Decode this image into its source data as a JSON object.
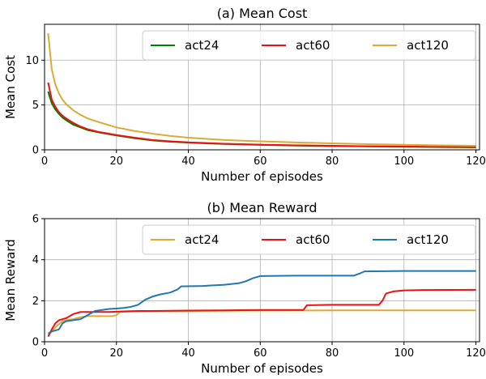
{
  "chart_data": [
    {
      "type": "line",
      "title": "(a) Mean Cost",
      "xlabel": "Number of episodes",
      "ylabel": "Mean Cost",
      "xlim": [
        0,
        121
      ],
      "ylim": [
        0,
        14
      ],
      "xticks": [
        0,
        20,
        40,
        60,
        80,
        100,
        120
      ],
      "yticks": [
        0,
        5,
        10
      ],
      "grid": true,
      "legend": "top-right",
      "series": [
        {
          "name": "act24",
          "color": "#008000",
          "points": [
            [
              1,
              6.5
            ],
            [
              2,
              5.2
            ],
            [
              3,
              4.5
            ],
            [
              4,
              4.0
            ],
            [
              5,
              3.6
            ],
            [
              6,
              3.3
            ],
            [
              8,
              2.8
            ],
            [
              10,
              2.5
            ],
            [
              12,
              2.2
            ],
            [
              15,
              1.95
            ],
            [
              20,
              1.6
            ],
            [
              25,
              1.3
            ],
            [
              30,
              1.05
            ],
            [
              35,
              0.9
            ],
            [
              40,
              0.8
            ],
            [
              50,
              0.65
            ],
            [
              60,
              0.55
            ],
            [
              70,
              0.47
            ],
            [
              80,
              0.42
            ],
            [
              90,
              0.38
            ],
            [
              100,
              0.34
            ],
            [
              110,
              0.31
            ],
            [
              120,
              0.28
            ]
          ]
        },
        {
          "name": "act60",
          "color": "#ee1111",
          "points": [
            [
              1,
              7.5
            ],
            [
              2,
              5.6
            ],
            [
              3,
              4.8
            ],
            [
              4,
              4.2
            ],
            [
              5,
              3.8
            ],
            [
              6,
              3.5
            ],
            [
              8,
              3.0
            ],
            [
              10,
              2.6
            ],
            [
              12,
              2.3
            ],
            [
              15,
              2.0
            ],
            [
              20,
              1.65
            ],
            [
              25,
              1.35
            ],
            [
              30,
              1.1
            ],
            [
              35,
              0.95
            ],
            [
              40,
              0.83
            ],
            [
              50,
              0.68
            ],
            [
              60,
              0.58
            ],
            [
              70,
              0.5
            ],
            [
              80,
              0.45
            ],
            [
              90,
              0.4
            ],
            [
              100,
              0.37
            ],
            [
              110,
              0.33
            ],
            [
              120,
              0.3
            ]
          ]
        },
        {
          "name": "act120",
          "color": "#ddaa33",
          "points": [
            [
              1,
              13.0
            ],
            [
              2,
              9.0
            ],
            [
              3,
              7.3
            ],
            [
              4,
              6.3
            ],
            [
              5,
              5.6
            ],
            [
              6,
              5.1
            ],
            [
              8,
              4.4
            ],
            [
              10,
              3.9
            ],
            [
              12,
              3.5
            ],
            [
              15,
              3.1
            ],
            [
              20,
              2.5
            ],
            [
              25,
              2.1
            ],
            [
              30,
              1.8
            ],
            [
              35,
              1.55
            ],
            [
              40,
              1.35
            ],
            [
              50,
              1.1
            ],
            [
              60,
              0.95
            ],
            [
              70,
              0.82
            ],
            [
              80,
              0.72
            ],
            [
              90,
              0.63
            ],
            [
              100,
              0.56
            ],
            [
              110,
              0.5
            ],
            [
              120,
              0.45
            ]
          ]
        }
      ]
    },
    {
      "type": "line",
      "title": "(b) Mean Reward",
      "xlabel": "Number of episodes",
      "ylabel": "Mean Reward",
      "xlim": [
        0,
        121
      ],
      "ylim": [
        0,
        6
      ],
      "xticks": [
        0,
        20,
        40,
        60,
        80,
        100,
        120
      ],
      "yticks": [
        0,
        2,
        4,
        6
      ],
      "grid": true,
      "legend": "top-right",
      "series": [
        {
          "name": "act24",
          "color": "#ddaa33",
          "points": [
            [
              1,
              0.3
            ],
            [
              2,
              0.5
            ],
            [
              3,
              0.7
            ],
            [
              4,
              0.85
            ],
            [
              5,
              1.0
            ],
            [
              6,
              1.05
            ],
            [
              8,
              1.1
            ],
            [
              10,
              1.2
            ],
            [
              12,
              1.25
            ],
            [
              15,
              1.25
            ],
            [
              19,
              1.25
            ],
            [
              20,
              1.3
            ],
            [
              21,
              1.45
            ],
            [
              25,
              1.48
            ],
            [
              30,
              1.5
            ],
            [
              40,
              1.5
            ],
            [
              60,
              1.52
            ],
            [
              80,
              1.53
            ],
            [
              100,
              1.53
            ],
            [
              120,
              1.53
            ]
          ]
        },
        {
          "name": "act60",
          "color": "#ee1111",
          "points": [
            [
              1,
              0.25
            ],
            [
              2,
              0.6
            ],
            [
              3,
              0.9
            ],
            [
              4,
              1.05
            ],
            [
              5,
              1.1
            ],
            [
              6,
              1.15
            ],
            [
              7,
              1.25
            ],
            [
              8,
              1.35
            ],
            [
              10,
              1.45
            ],
            [
              12,
              1.45
            ],
            [
              18,
              1.45
            ],
            [
              22,
              1.48
            ],
            [
              26,
              1.5
            ],
            [
              30,
              1.5
            ],
            [
              40,
              1.52
            ],
            [
              50,
              1.53
            ],
            [
              60,
              1.55
            ],
            [
              72,
              1.55
            ],
            [
              73,
              1.78
            ],
            [
              80,
              1.8
            ],
            [
              90,
              1.8
            ],
            [
              93,
              1.8
            ],
            [
              94,
              2.0
            ],
            [
              95,
              2.35
            ],
            [
              97,
              2.45
            ],
            [
              100,
              2.5
            ],
            [
              105,
              2.52
            ],
            [
              120,
              2.53
            ]
          ]
        },
        {
          "name": "act120",
          "color": "#1f77b4",
          "points": [
            [
              1,
              0.4
            ],
            [
              2,
              0.5
            ],
            [
              3,
              0.55
            ],
            [
              4,
              0.6
            ],
            [
              5,
              0.9
            ],
            [
              6,
              1.0
            ],
            [
              8,
              1.05
            ],
            [
              10,
              1.1
            ],
            [
              12,
              1.3
            ],
            [
              14,
              1.5
            ],
            [
              16,
              1.55
            ],
            [
              18,
              1.6
            ],
            [
              20,
              1.62
            ],
            [
              22,
              1.65
            ],
            [
              24,
              1.7
            ],
            [
              26,
              1.8
            ],
            [
              28,
              2.05
            ],
            [
              30,
              2.2
            ],
            [
              32,
              2.3
            ],
            [
              35,
              2.4
            ],
            [
              37,
              2.55
            ],
            [
              38,
              2.7
            ],
            [
              44,
              2.72
            ],
            [
              50,
              2.78
            ],
            [
              54,
              2.85
            ],
            [
              56,
              2.95
            ],
            [
              58,
              3.1
            ],
            [
              60,
              3.2
            ],
            [
              70,
              3.22
            ],
            [
              80,
              3.22
            ],
            [
              86,
              3.22
            ],
            [
              88,
              3.35
            ],
            [
              89,
              3.43
            ],
            [
              100,
              3.45
            ],
            [
              120,
              3.45
            ]
          ]
        }
      ]
    }
  ]
}
